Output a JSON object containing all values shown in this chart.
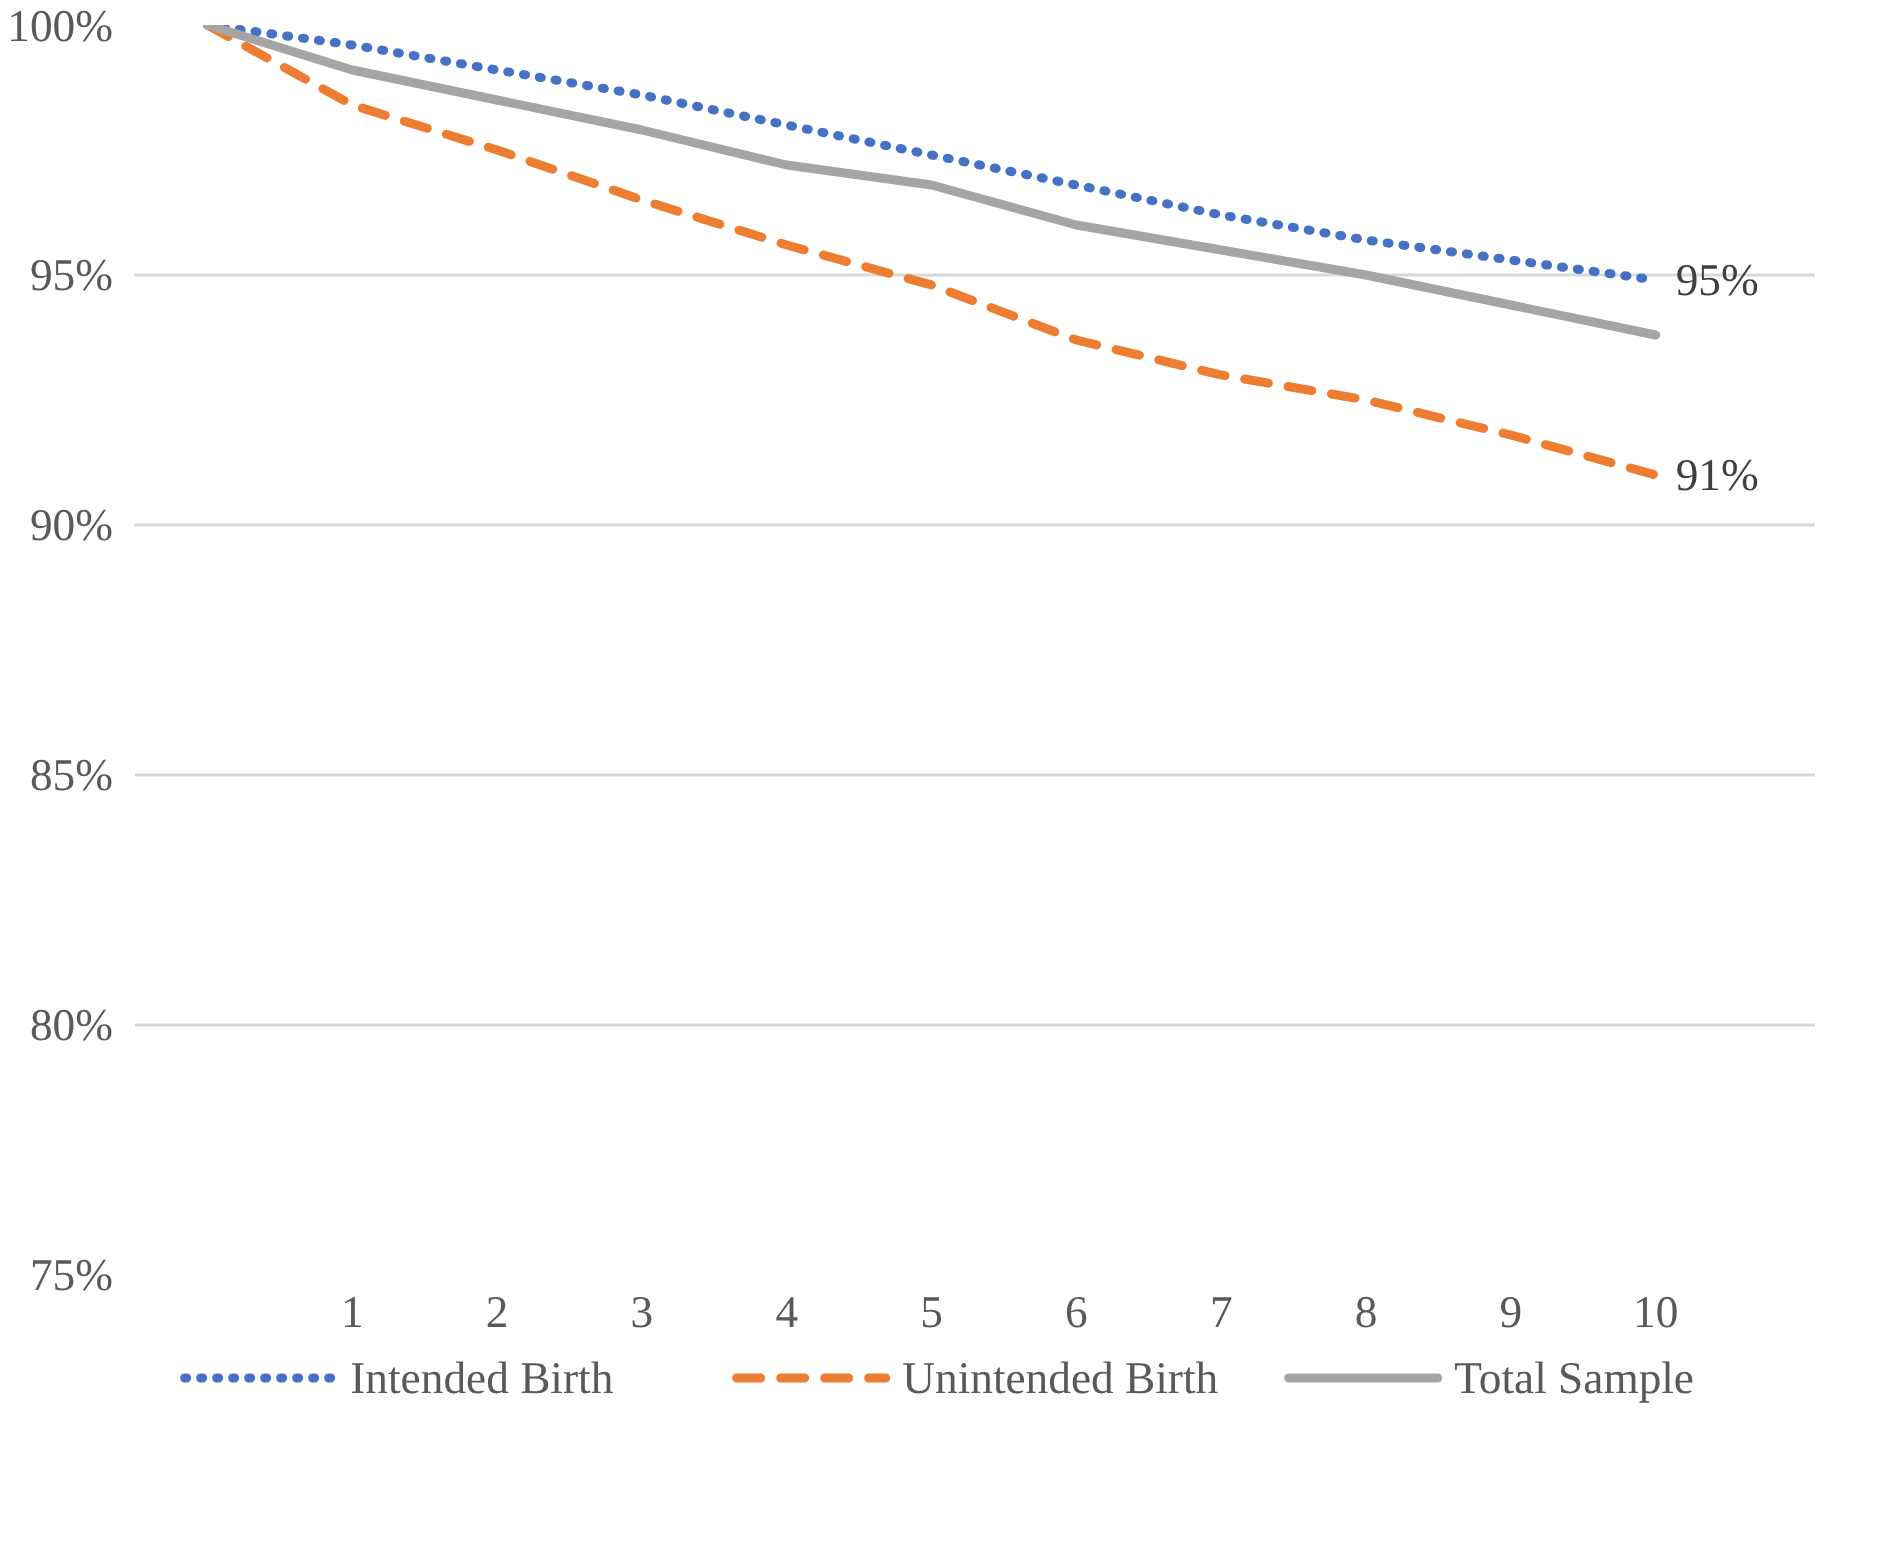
{
  "chart_data": {
    "type": "line",
    "categories": [
      null,
      "1",
      "2",
      "3",
      "4",
      "5",
      "6",
      "7",
      "8",
      "9",
      "10"
    ],
    "ylim": [
      75,
      100
    ],
    "yticks": [
      {
        "value": 75,
        "label": "75%"
      },
      {
        "value": 80,
        "label": "80%"
      },
      {
        "value": 85,
        "label": "85%"
      },
      {
        "value": 90,
        "label": "90%"
      },
      {
        "value": 95,
        "label": "95%"
      },
      {
        "value": 100,
        "label": "100%"
      }
    ],
    "grid": "y",
    "legend": "bottom",
    "series": [
      {
        "name": "Intended Birth",
        "color": "#4472c4",
        "line_style": "dotted",
        "values": [
          100,
          99.6,
          99.1,
          98.6,
          98.0,
          97.4,
          96.8,
          96.2,
          95.7,
          95.3,
          94.9
        ],
        "value_labels": [
          null,
          null,
          null,
          null,
          null,
          null,
          null,
          null,
          null,
          null,
          "95%"
        ]
      },
      {
        "name": "Unintended Birth",
        "color": "#ed7d31",
        "line_style": "dashed",
        "values": [
          100,
          98.4,
          97.5,
          96.5,
          95.6,
          94.8,
          93.7,
          93.0,
          92.5,
          91.8,
          91.0
        ],
        "value_labels": [
          null,
          null,
          null,
          null,
          null,
          null,
          null,
          null,
          null,
          null,
          "91%"
        ]
      },
      {
        "name": "Total Sample",
        "color": "#a5a5a5",
        "line_style": "solid",
        "values": [
          100,
          99.1,
          98.5,
          97.9,
          97.2,
          96.8,
          96.0,
          95.5,
          95.0,
          94.4,
          93.8
        ]
      }
    ]
  }
}
